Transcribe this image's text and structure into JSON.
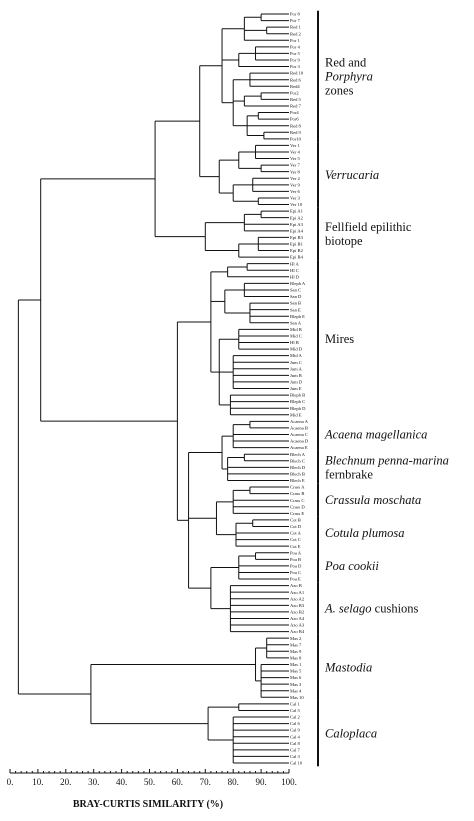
{
  "chart_data": {
    "type": "dendrogram",
    "xlabel": "BRAY-CURTIS SIMILARITY (%)",
    "x_ticks": [
      "0.",
      "10.",
      "20.",
      "30.",
      "40.",
      "50.",
      "60.",
      "70.",
      "80.",
      "90.",
      "100."
    ],
    "xlim": [
      0,
      100
    ],
    "leaves": [
      "Por 8",
      "Por 7",
      "Red 1",
      "Red 2",
      "Por 1",
      "Por 4",
      "Por 5",
      "Por 9",
      "Por 3",
      "Red 10",
      "Red 6",
      "Red4",
      "Por2",
      "Red 5",
      "Red 7",
      "Por4",
      "Por6",
      "Red 8",
      "Red 9",
      "Por10",
      "Ver 1",
      "Ver 4",
      "Ver 5",
      "Ver 7",
      "Ver 8",
      "Ver 2",
      "Ver 9",
      "Ver 6",
      "Ver 3",
      "Ver 10",
      "Epi A1",
      "Epi A2",
      "Epi A3",
      "Epi A4",
      "Epi B3",
      "Epi B1",
      "Epi B2",
      "Epi B4",
      "Hl A",
      "Hl C",
      "Hl D",
      "Bleph A",
      "San C",
      "San D",
      "San B",
      "San E",
      "Bleph E",
      "San A",
      "Mid B",
      "Mid C",
      "Hl B",
      "Mid D",
      "Mid A",
      "Jum C",
      "Jum A",
      "Jum B",
      "Jum D",
      "Jum E",
      "Bleph B",
      "Bleph C",
      "Bleph D",
      "Mid E",
      "Acaena A",
      "Acaena B",
      "Acaena C",
      "Acaena D",
      "Acaena E",
      "Blech A",
      "Blech C",
      "Blech D",
      "Blech B",
      "Blech E",
      "Crass A",
      "Crass B",
      "Crass C",
      "Crass D",
      "Crass E",
      "Cot B",
      "Cot D",
      "Cot A",
      "Cot C",
      "Cot E",
      "Poa A",
      "Poa B",
      "Poa D",
      "Poa C",
      "Poa E",
      "Azo B",
      "Azo A1",
      "Azo A2",
      "Azo B3",
      "Azo B2",
      "Azo A4",
      "Azo A3",
      "Azo B4",
      "Mas 2",
      "Mas 7",
      "Mas 9",
      "Mas 8",
      "Mas 1",
      "Mas 5",
      "Mas 6",
      "Mas 3",
      "Mas 4",
      "Mas 10",
      "Cal 1",
      "Cal 5",
      "Cal 2",
      "Cal 6",
      "Cal 9",
      "Cal 4",
      "Cal 8",
      "Cal 7",
      "Cal 3",
      "Cal 10"
    ],
    "groups": [
      {
        "parts": [
          {
            "t": "Red and",
            "i": false
          }
        ],
        "parts2": [
          {
            "t": "Porphyra",
            "i": true
          }
        ],
        "parts3": [
          {
            "t": "zones",
            "i": false
          }
        ],
        "start": 0,
        "end": 19
      },
      {
        "parts": [
          {
            "t": "Verrucaria",
            "i": true
          }
        ],
        "start": 20,
        "end": 29
      },
      {
        "parts": [
          {
            "t": "Fellfield epilithic",
            "i": false
          }
        ],
        "parts2": [
          {
            "t": "biotope",
            "i": false
          }
        ],
        "start": 30,
        "end": 37
      },
      {
        "parts": [
          {
            "t": "Mires",
            "i": false
          }
        ],
        "start": 38,
        "end": 61
      },
      {
        "parts": [
          {
            "t": "Acaena magellanica",
            "i": true
          }
        ],
        "start": 62,
        "end": 66
      },
      {
        "parts": [
          {
            "t": "Blechnum penna-marina",
            "i": true
          }
        ],
        "parts2": [
          {
            "t": "fernbrake",
            "i": false
          }
        ],
        "start": 67,
        "end": 71
      },
      {
        "parts": [
          {
            "t": "Crassula moschata",
            "i": true
          }
        ],
        "start": 72,
        "end": 76
      },
      {
        "parts": [
          {
            "t": "Cotula plumosa",
            "i": true
          }
        ],
        "start": 77,
        "end": 81
      },
      {
        "parts": [
          {
            "t": "Poa cookii",
            "i": true
          }
        ],
        "start": 82,
        "end": 86
      },
      {
        "parts": [
          {
            "t": "A. selago",
            "i": true
          },
          {
            "t": " cushions",
            "i": false
          }
        ],
        "start": 87,
        "end": 94
      },
      {
        "parts": [
          {
            "t": "Mastodia",
            "i": true
          }
        ],
        "start": 95,
        "end": 104
      },
      {
        "parts": [
          {
            "t": "Caloplaca",
            "i": true
          }
        ],
        "start": 105,
        "end": 114
      }
    ],
    "tree": {
      "s": 3,
      "c": [
        {
          "s": 11,
          "c": [
            {
              "s": 52,
              "c": [
                {
                  "s": 68,
                  "c": [
                    {
                      "s": 76,
                      "c": [
                        {
                          "s": 84,
                          "c": [
                            {
                              "s": 90,
                              "c": [
                                0,
                                1
                              ]
                            },
                            {
                              "s": 92,
                              "c": [
                                2,
                                3
                              ]
                            },
                            4
                          ]
                        },
                        {
                          "s": 82,
                          "c": [
                            {
                              "s": 88,
                              "c": [
                                5,
                                6,
                                7
                              ]
                            },
                            8
                          ]
                        },
                        {
                          "s": 80,
                          "c": [
                            {
                              "s": 86,
                              "c": [
                                9,
                                10,
                                11
                              ]
                            },
                            {
                              "s": 84,
                              "c": [
                                {
                                  "s": 90,
                                  "c": [
                                    12,
                                    13
                                  ]
                                },
                                14
                              ]
                            },
                            {
                              "s": 85,
                              "c": [
                                {
                                  "s": 89,
                                  "c": [
                                    15,
                                    16
                                  ]
                                },
                                17,
                                {
                                  "s": 91,
                                  "c": [
                                    18,
                                    19
                                  ]
                                }
                              ]
                            }
                          ]
                        }
                      ]
                    },
                    {
                      "s": 75,
                      "c": [
                        {
                          "s": 82,
                          "c": [
                            {
                              "s": 88,
                              "c": [
                                20,
                                21,
                                22
                              ]
                            },
                            {
                              "s": 90,
                              "c": [
                                23,
                                24
                              ]
                            }
                          ]
                        },
                        {
                          "s": 80,
                          "c": [
                            {
                              "s": 87,
                              "c": [
                                25,
                                26,
                                27
                              ]
                            },
                            {
                              "s": 89,
                              "c": [
                                28,
                                29
                              ]
                            }
                          ]
                        }
                      ]
                    }
                  ]
                },
                {
                  "s": 70,
                  "c": [
                    {
                      "s": 84,
                      "c": [
                        {
                          "s": 90,
                          "c": [
                            30,
                            31
                          ]
                        },
                        32,
                        33
                      ]
                    },
                    {
                      "s": 82,
                      "c": [
                        {
                          "s": 89,
                          "c": [
                            34,
                            35,
                            36
                          ]
                        },
                        37
                      ]
                    }
                  ]
                }
              ]
            },
            {
              "s": 29,
              "c": [
                {
                  "s": 29,
                  "c": [
                    {
                      "s": 60,
                      "c": [
                        {
                          "s": 72,
                          "c": [
                            {
                              "s": 78,
                              "c": [
                                {
                                  "s": 85,
                                  "c": [
                                    38,
                                    39
                                  ]
                                },
                                40
                              ]
                            },
                            {
                              "s": 77,
                              "c": [
                                {
                                  "s": 84,
                                  "c": [
                                    41,
                                    42,
                                    43
                                  ]
                                },
                                {
                                  "s": 86,
                                  "c": [
                                    44,
                                    45,
                                    46,
                                    47
                                  ]
                                }
                              ]
                            },
                            {
                              "s": 75,
                              "c": [
                                {
                                  "s": 82,
                                  "c": [
                                    48,
                                    49,
                                    50,
                                    51
                                  ]
                                },
                                {
                                  "s": 80,
                                  "c": [
                                    52,
                                    53,
                                    54,
                                    55,
                                    56,
                                    57
                                  ]
                                },
                                {
                                  "s": 79,
                                  "c": [
                                    58,
                                    59,
                                    60,
                                    61
                                  ]
                                }
                              ]
                            }
                          ]
                        },
                        {
                          "s": 64,
                          "c": [
                            {
                              "s": 76,
                              "c": [
                                {
                                  "s": 80,
                                  "c": [
                                    {
                                      "s": 86,
                                      "c": [
                                        62,
                                        63
                                      ]
                                    },
                                    64,
                                    65,
                                    66
                                  ]
                                },
                                {
                                  "s": 78,
                                  "c": [
                                    {
                                      "s": 84,
                                      "c": [
                                        67,
                                        68
                                      ]
                                    },
                                    69,
                                    70,
                                    71
                                  ]
                                }
                              ]
                            },
                            {
                              "s": 74,
                              "c": [
                                {
                                  "s": 80,
                                  "c": [
                                    {
                                      "s": 86,
                                      "c": [
                                        72,
                                        73
                                      ]
                                    },
                                    74,
                                    75,
                                    76
                                  ]
                                },
                                {
                                  "s": 81,
                                  "c": [
                                    {
                                      "s": 87,
                                      "c": [
                                        77,
                                        78
                                      ]
                                    },
                                    79,
                                    80,
                                    81
                                  ]
                                }
                              ]
                            },
                            {
                              "s": 72,
                              "c": [
                                {
                                  "s": 82,
                                  "c": [
                                    {
                                      "s": 88,
                                      "c": [
                                        82,
                                        83
                                      ]
                                    },
                                    84,
                                    85,
                                    86
                                  ]
                                },
                                {
                                  "s": 79,
                                  "c": [
                                    87,
                                    88,
                                    89,
                                    90,
                                    91,
                                    92,
                                    93,
                                    94
                                  ]
                                }
                              ]
                            }
                          ]
                        }
                      ]
                    }
                  ]
                }
              ]
            }
          ]
        },
        {
          "s": 29,
          "c": [
            {
              "s": 88,
              "c": [
                {
                  "s": 92,
                  "c": [
                    95,
                    96,
                    97,
                    98
                  ]
                },
                {
                  "s": 90,
                  "c": [
                    99,
                    100,
                    101,
                    102,
                    103,
                    104
                  ]
                }
              ]
            },
            {
              "s": 71,
              "c": [
                {
                  "s": 82,
                  "c": [
                    105,
                    106
                  ]
                },
                {
                  "s": 80,
                  "c": [
                    107,
                    108,
                    109,
                    110,
                    111,
                    112,
                    113,
                    114
                  ]
                }
              ]
            }
          ]
        }
      ]
    }
  }
}
